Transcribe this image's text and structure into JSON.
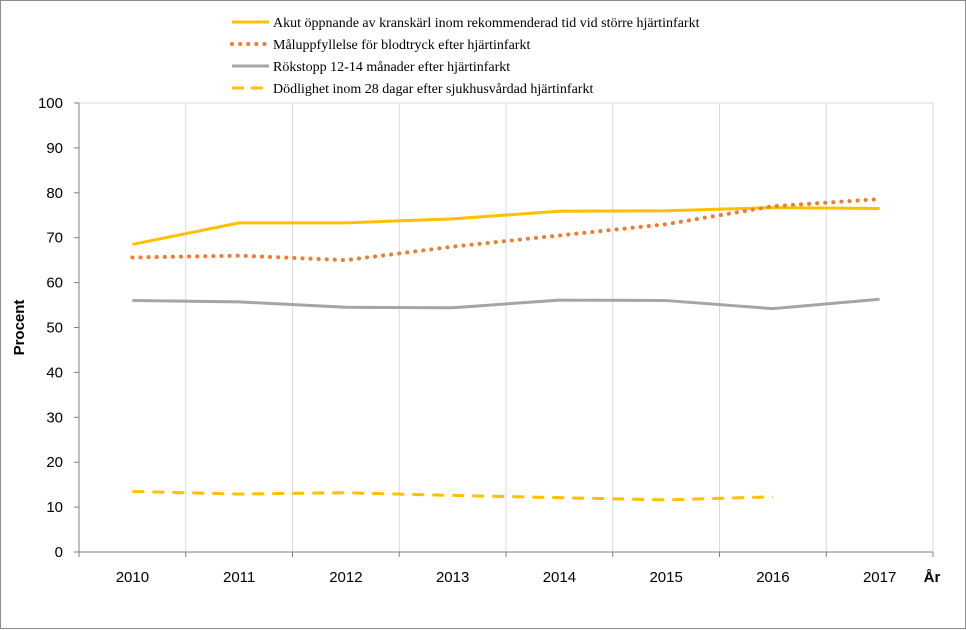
{
  "chart_data": {
    "type": "line",
    "title": "",
    "xlabel": "År",
    "ylabel": "Procent",
    "ylim": [
      0,
      100
    ],
    "yticks": [
      0,
      10,
      20,
      30,
      40,
      50,
      60,
      70,
      80,
      90,
      100
    ],
    "categories": [
      "2010",
      "2011",
      "2012",
      "2013",
      "2014",
      "2015",
      "2016",
      "2017"
    ],
    "grid": "vertical",
    "legend_position": "top",
    "series": [
      {
        "name": "Akut öppnande av kranskärl inom rekommenderad tid vid större hjärtinfarkt",
        "style": "solid",
        "color": "#ffc000",
        "values": [
          68.5,
          73.3,
          73.3,
          74.2,
          75.9,
          76.0,
          76.7,
          76.5
        ]
      },
      {
        "name": "Måluppfyllelse för blodtryck efter hjärtinfarkt",
        "style": "dotted",
        "color": "#ed7d31",
        "values": [
          65.6,
          66.0,
          65.0,
          68.0,
          70.5,
          73.0,
          77.0,
          78.6
        ]
      },
      {
        "name": "Rökstopp 12-14 månader efter hjärtinfarkt",
        "style": "solid",
        "color": "#a5a5a5",
        "values": [
          56.0,
          55.7,
          54.5,
          54.4,
          56.1,
          56.0,
          54.2,
          56.3
        ]
      },
      {
        "name": "Dödlighet inom 28 dagar efter sjukhusvårdad hjärtinfarkt",
        "style": "dashed",
        "color": "#ffc000",
        "values": [
          13.5,
          12.9,
          13.2,
          12.6,
          12.1,
          11.6,
          12.3,
          null
        ]
      }
    ]
  }
}
